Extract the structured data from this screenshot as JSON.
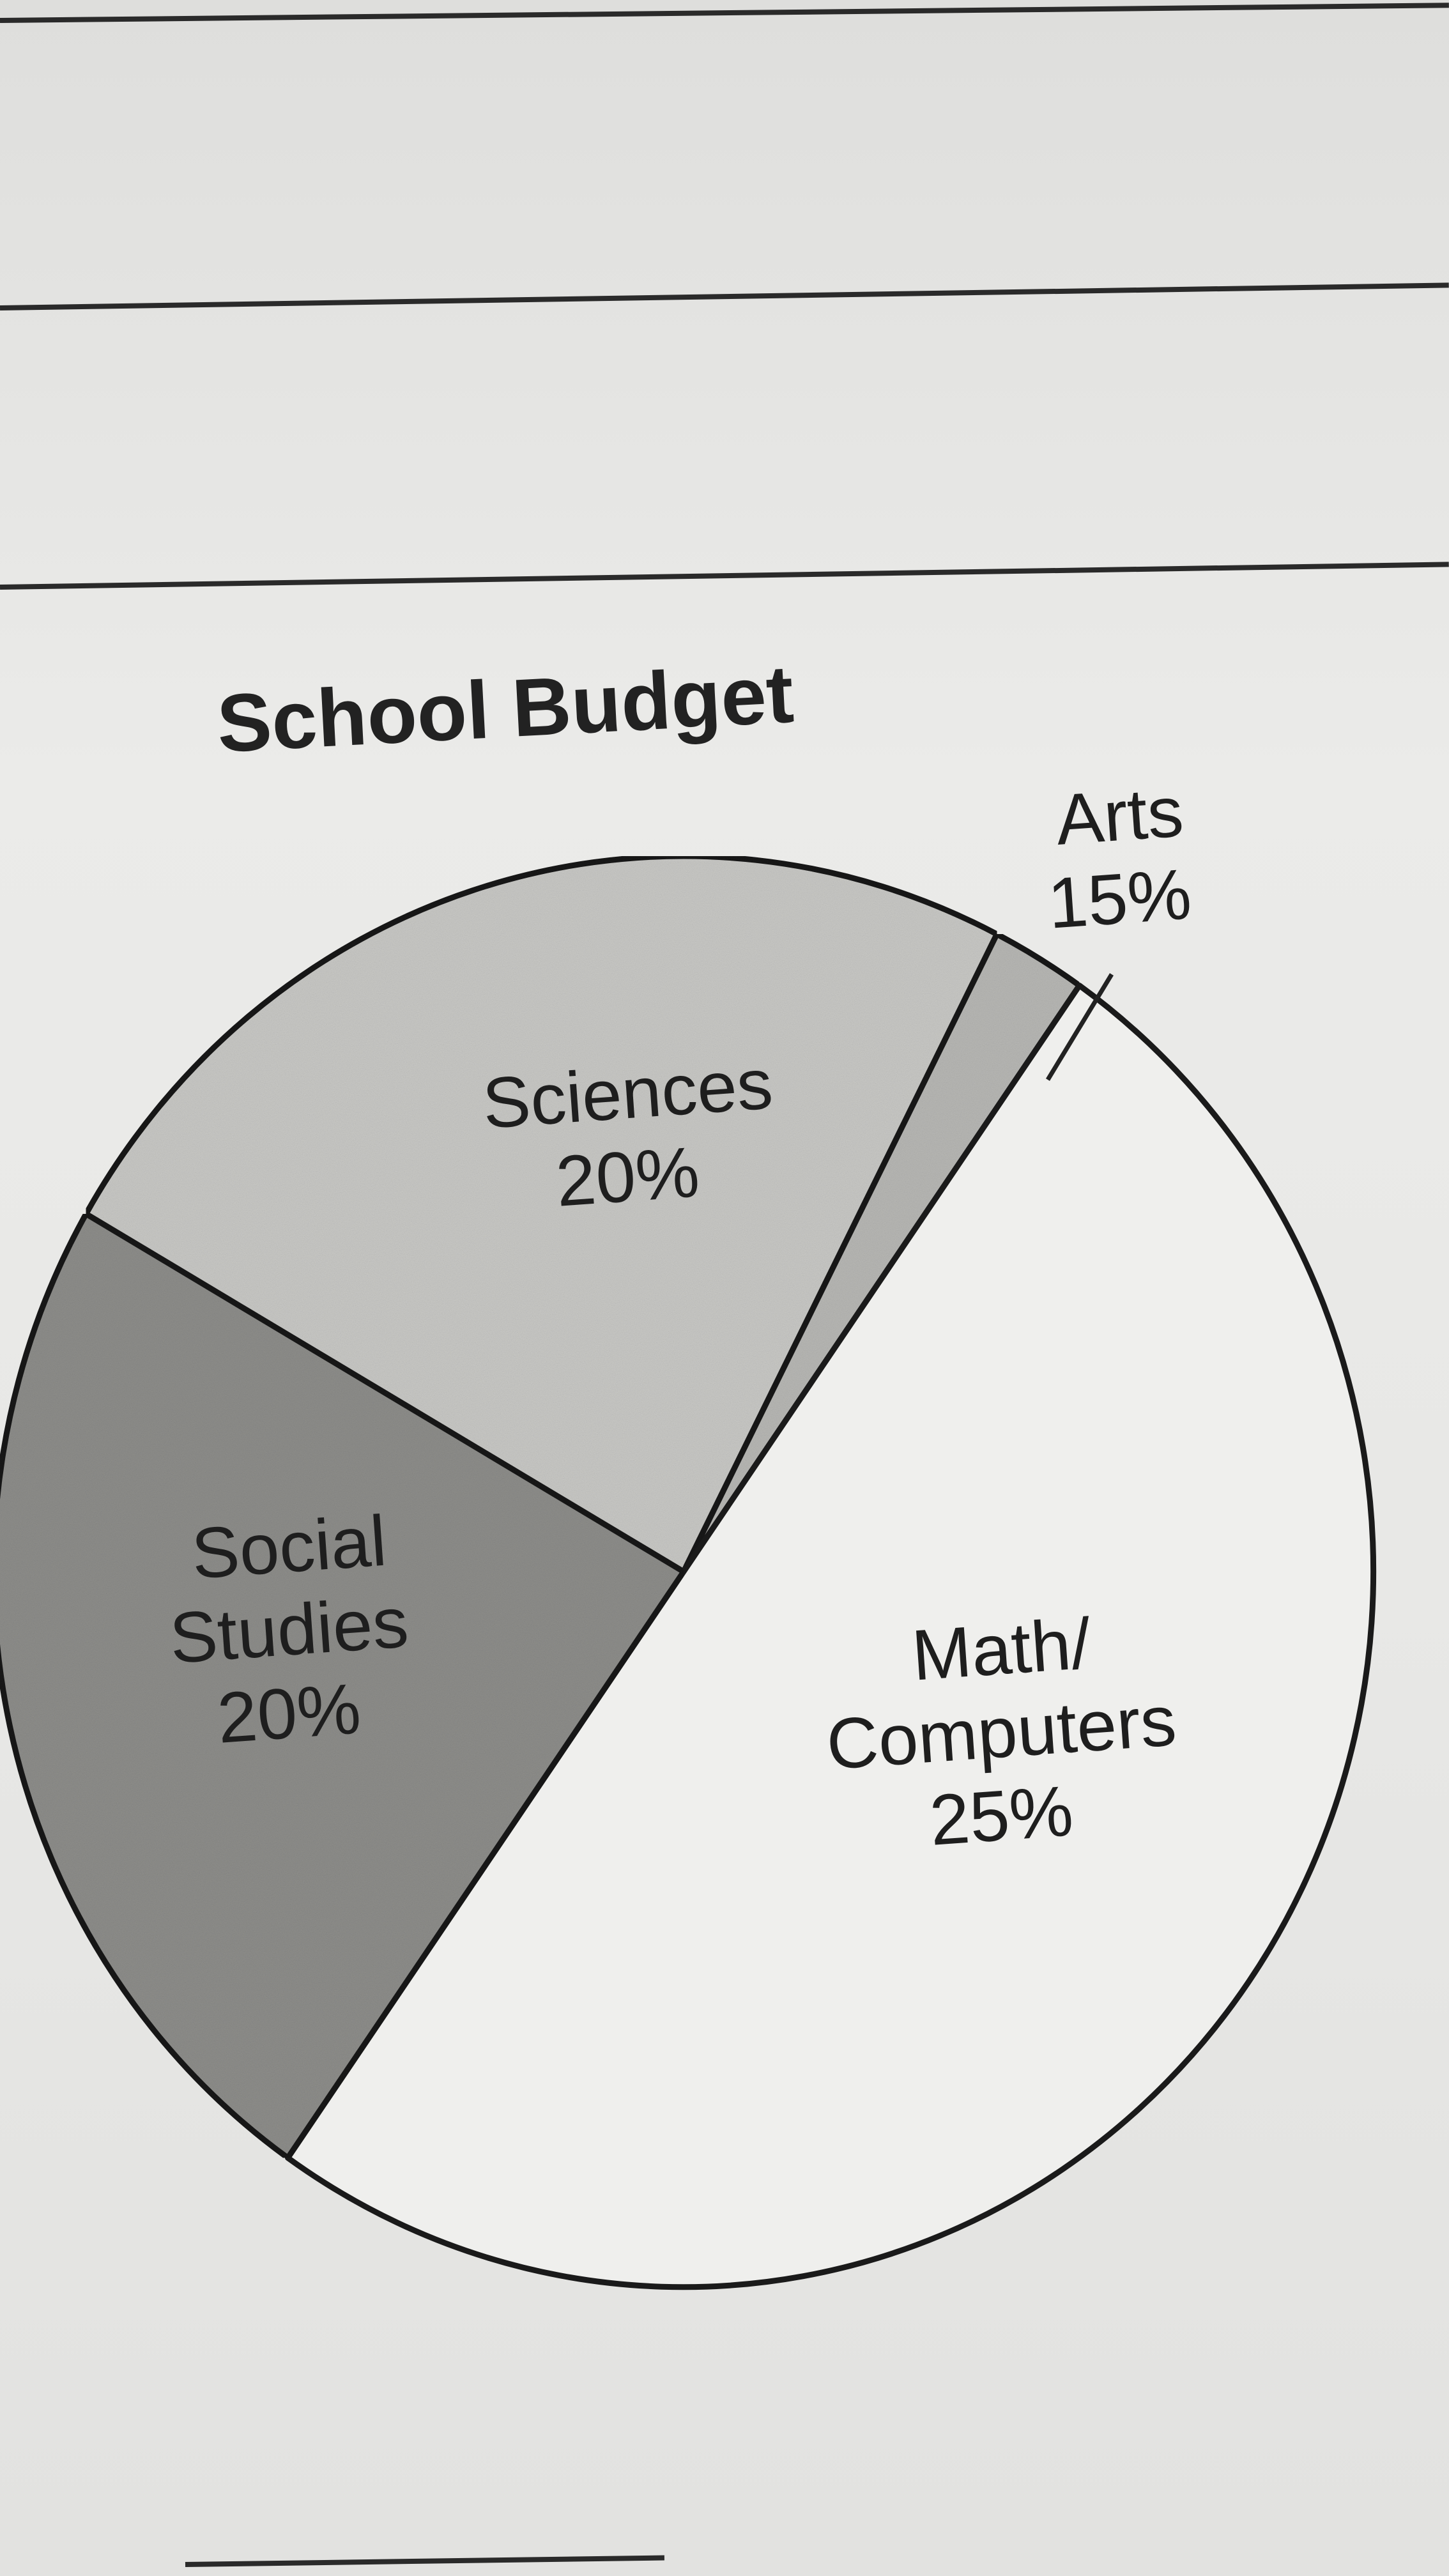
{
  "chart_data": {
    "type": "pie",
    "title": "School Budget",
    "slices": [
      {
        "label": "Sciences",
        "value_label": "20%",
        "value": 20,
        "color": "#c9c9c6"
      },
      {
        "label": "Arts",
        "value_label": "15%",
        "value": 15,
        "color": "#b8b8b5"
      },
      {
        "label": "Math/ Computers",
        "value_label": "25%",
        "value": 25,
        "color": "#efefed"
      },
      {
        "label": "Social Studies",
        "value_label": "20%",
        "value": 20,
        "color": "#8e8e8b"
      }
    ],
    "legend": "none"
  }
}
